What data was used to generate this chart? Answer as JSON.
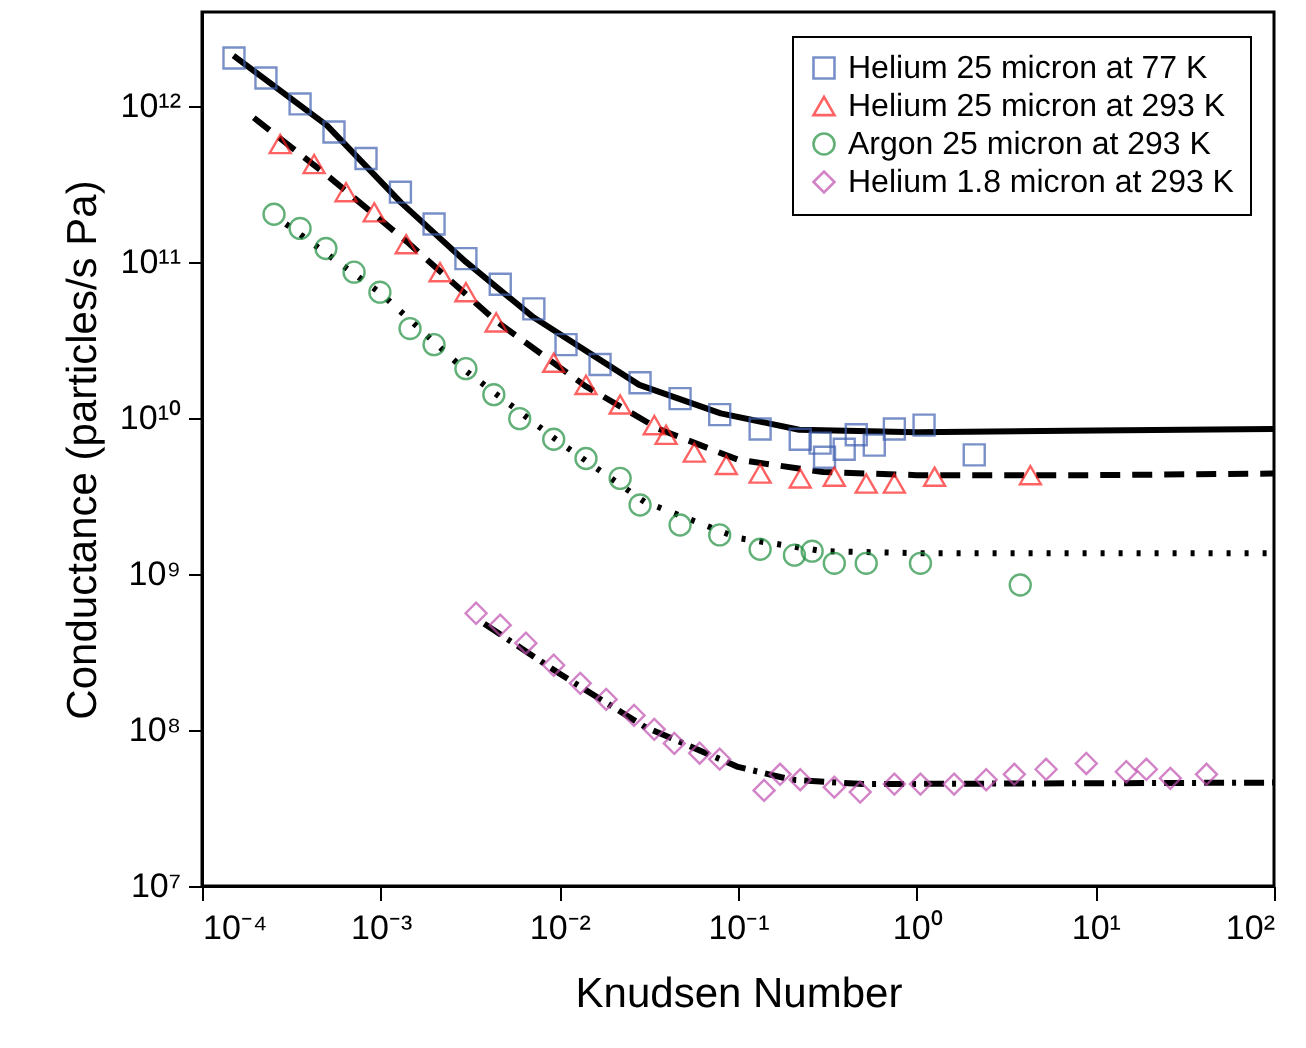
{
  "chart_data": {
    "type": "scatter",
    "xlabel": "Knudsen Number",
    "ylabel": "Conductance (particles/s Pa)",
    "log": "xy",
    "legend": "top right",
    "xlim": [
      0.0001,
      100
    ],
    "ylim": [
      10000000,
      4000000000000
    ],
    "xticks": [
      {
        "value": 0.0001,
        "label": "10⁻⁴"
      },
      {
        "value": 0.001,
        "label": "10⁻³"
      },
      {
        "value": 0.01,
        "label": "10⁻²"
      },
      {
        "value": 0.1,
        "label": "10⁻¹"
      },
      {
        "value": 1,
        "label": "10⁰"
      },
      {
        "value": 10,
        "label": "10¹"
      },
      {
        "value": 100,
        "label": "10²"
      }
    ],
    "yticks": [
      {
        "value": 10000000,
        "label": "10⁷"
      },
      {
        "value": 100000000,
        "label": "10⁸"
      },
      {
        "value": 1000000000,
        "label": "10⁹"
      },
      {
        "value": 10000000000,
        "label": "10¹⁰"
      },
      {
        "value": 100000000000,
        "label": "10¹¹"
      },
      {
        "value": 1000000000000,
        "label": "10¹²"
      }
    ],
    "series": [
      {
        "name": "Helium 25 micron at 77 K",
        "marker": "square",
        "color": "#4060b0",
        "x": [
          0.000151,
          0.000228,
          0.000354,
          0.000548,
          0.000828,
          0.00129,
          0.00199,
          0.003,
          0.00467,
          0.0072,
          0.0109,
          0.0169,
          0.0283,
          0.0474,
          0.079,
          0.133,
          0.223,
          0.288,
          0.305,
          0.393,
          0.459,
          0.579,
          0.75,
          1.1,
          2.1
        ],
        "values": [
          2030000000000,
          1510000000000,
          1030000000000,
          680000000000,
          460000000000,
          280000000000,
          175000000000,
          105000000000,
          72000000000,
          50000000000,
          29500000000,
          22000000000,
          16800000000,
          13300000000,
          10500000000,
          8500000000,
          7300000000,
          6900000000,
          5600000000,
          6300000000,
          7800000000,
          6700000000,
          8500000000,
          9000000000,
          5800000000
        ]
      },
      {
        "name": "Helium 25 micron at 293 K",
        "marker": "triangle",
        "color": "#ff2020",
        "x": [
          0.000274,
          0.000424,
          0.00064,
          0.00092,
          0.00139,
          0.00215,
          0.003,
          0.00443,
          0.0093,
          0.0141,
          0.0219,
          0.034,
          0.0396,
          0.0569,
          0.086,
          0.133,
          0.223,
          0.346,
          0.522,
          0.75,
          1.26,
          4.33
        ],
        "values": [
          570000000000,
          424000000000,
          280000000000,
          208000000000,
          130000000000,
          86000000000,
          64000000000,
          41000000000,
          22600000000,
          16300000000,
          12200000000,
          9000000000,
          7800000000,
          6000000000,
          5000000000,
          4400000000,
          4100000000,
          4200000000,
          3800000000,
          3800000000,
          4200000000,
          4300000000
        ]
      },
      {
        "name": "Argon 25 micron at 293 K",
        "marker": "circle",
        "color": "#209040",
        "x": [
          0.000253,
          0.000354,
          0.000494,
          0.00071,
          0.00099,
          0.00146,
          0.00199,
          0.003,
          0.0043,
          0.006,
          0.0093,
          0.0141,
          0.0219,
          0.0283,
          0.0474,
          0.079,
          0.133,
          0.207,
          0.26,
          0.346,
          0.522,
          1.05,
          3.8
        ],
        "values": [
          202000000000,
          164000000000,
          122000000000,
          86000000000,
          64000000000,
          37400000000,
          29500000000,
          20700000000,
          14100000000,
          9900000000,
          7300000000,
          5500000000,
          4100000000,
          2770000000,
          2060000000,
          1780000000,
          1440000000,
          1320000000,
          1400000000,
          1170000000,
          1170000000,
          1170000000,
          850000000
        ]
      },
      {
        "name": "Helium 1.8 micron at 293 K",
        "marker": "diamond",
        "color": "#c050b0",
        "x": [
          0.00342,
          0.00467,
          0.0065,
          0.0093,
          0.0131,
          0.0183,
          0.0262,
          0.034,
          0.044,
          0.061,
          0.079,
          0.14,
          0.172,
          0.223,
          0.346,
          0.483,
          0.75,
          1.05,
          1.62,
          2.45,
          3.52,
          5.3,
          8.9,
          14.9,
          19.3,
          26.3,
          41.9
        ],
        "values": [
          560000000,
          470000000,
          360000000,
          260000000,
          199000000,
          157000000,
          124000000,
          101000000,
          82000000,
          71000000,
          65000000,
          41000000,
          52000000,
          48000000,
          43000000,
          40000000,
          45000000,
          45000000,
          45000000,
          48000000,
          52000000,
          56000000,
          61000000,
          54000000,
          56000000,
          49000000,
          52000000
        ]
      },
      {
        "type": "line",
        "line_style": "solid",
        "color": "#000000",
        "x": [
          0.00015,
          0.0005,
          0.0013,
          0.003,
          0.0072,
          0.028,
          0.08,
          0.22,
          1,
          10,
          100
        ],
        "values": [
          2100000000000,
          750000000000,
          240000000000,
          100000000000,
          44000000000,
          16300000000,
          10700000000,
          8400000000,
          8100000000,
          8300000000,
          8500000000
        ]
      },
      {
        "type": "line",
        "line_style": "dashed",
        "color": "#000000",
        "x": [
          0.000195,
          0.0005,
          0.0014,
          0.0044,
          0.014,
          0.036,
          0.1,
          0.3,
          1,
          10,
          100
        ],
        "values": [
          840000000000,
          360000000000,
          135000000000,
          42000000000,
          16000000000,
          8500000000,
          5400000000,
          4500000000,
          4300000000,
          4300000000,
          4400000000
        ]
      },
      {
        "type": "line",
        "line_style": "dotted",
        "color": "#000000",
        "x": [
          0.000295,
          0.001,
          0.003,
          0.01,
          0.03,
          0.1,
          0.3,
          1,
          100
        ],
        "values": [
          175000000000,
          63000000000,
          20000000000,
          7000000000,
          2900000000,
          1700000000,
          1400000000,
          1360000000,
          1360000000
        ]
      },
      {
        "type": "line",
        "line_style": "dashdot",
        "color": "#000000",
        "x": [
          0.0038,
          0.01,
          0.03,
          0.1,
          0.2,
          0.5,
          100
        ],
        "values": [
          480000000,
          230000000,
          105000000,
          58000000,
          48000000,
          45000000,
          46000000
        ]
      }
    ]
  }
}
